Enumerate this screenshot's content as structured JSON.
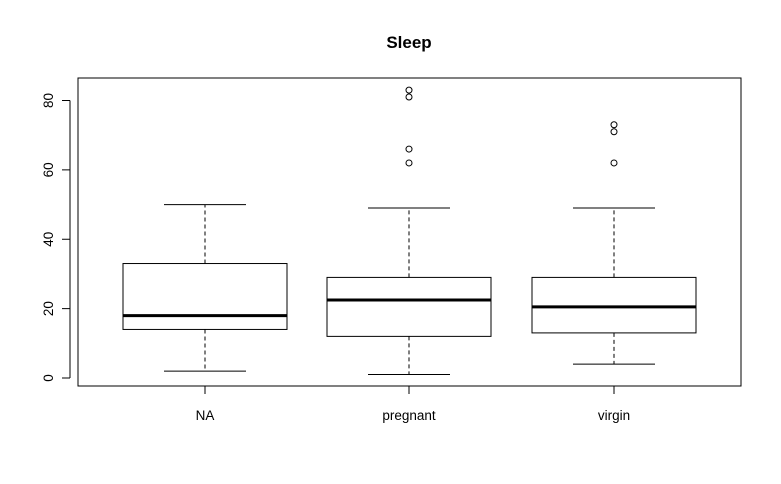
{
  "chart_data": {
    "type": "boxplot",
    "title": "Sleep",
    "xlabel": "",
    "ylabel": "",
    "ylim": [
      -2,
      86
    ],
    "yticks": [
      0,
      20,
      40,
      60,
      80
    ],
    "grid": false,
    "categories": [
      "NA",
      "pregnant",
      "virgin"
    ],
    "boxes": [
      {
        "category": "NA",
        "whisker_low": 2,
        "q1": 14,
        "median": 18,
        "q3": 33,
        "whisker_high": 50,
        "outliers": []
      },
      {
        "category": "pregnant",
        "whisker_low": 1,
        "q1": 12,
        "median": 22.5,
        "q3": 29,
        "whisker_high": 49,
        "outliers": [
          62,
          66,
          81,
          83
        ]
      },
      {
        "category": "virgin",
        "whisker_low": 4,
        "q1": 13,
        "median": 20.5,
        "q3": 29,
        "whisker_high": 49,
        "outliers": [
          62,
          71,
          73
        ]
      }
    ]
  }
}
